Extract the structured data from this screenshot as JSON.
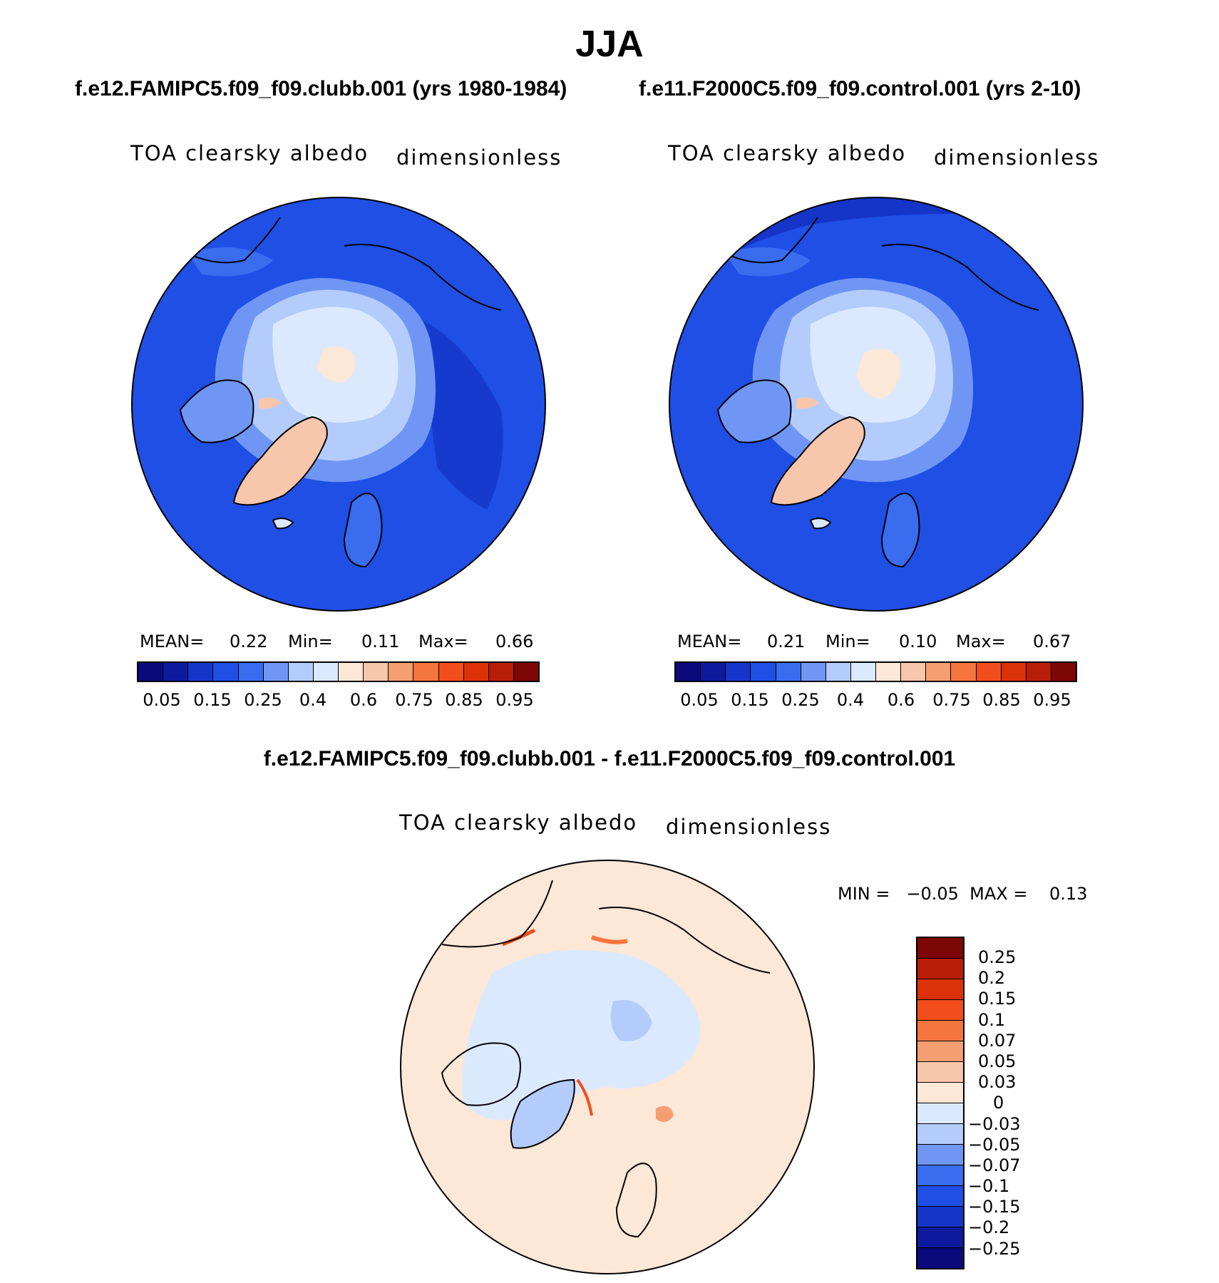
{
  "title": "JJA",
  "panels": [
    {
      "case_title": "f.e12.FAMIPC5.f09_f09.clubb.001 (yrs 1980-1984)",
      "variable": "TOA clearsky albedo",
      "units": "dimensionless",
      "stats": {
        "mean_label": "MEAN=",
        "mean": "0.22",
        "min_label": "Min=",
        "min": "0.11",
        "max_label": "Max=",
        "max": "0.66"
      }
    },
    {
      "case_title": "f.e11.F2000C5.f09_f09.control.001 (yrs 2-10)",
      "variable": "TOA clearsky albedo",
      "units": "dimensionless",
      "stats": {
        "mean_label": "MEAN=",
        "mean": "0.21",
        "min_label": "Min=",
        "min": "0.10",
        "max_label": "Max=",
        "max": "0.67"
      }
    }
  ],
  "diff_panel": {
    "case_title": "f.e12.FAMIPC5.f09_f09.clubb.001 - f.e11.F2000C5.f09_f09.control.001",
    "variable": "TOA clearsky albedo",
    "units": "dimensionless",
    "minmax_text": "MIN =   −0.05  MAX =    0.13"
  },
  "colorbar_abs": {
    "colors": [
      "#0a0a7c",
      "#0e1a9e",
      "#1535c8",
      "#1f4fe5",
      "#3a6cf0",
      "#7096f5",
      "#b3ccfb",
      "#dbe9fe",
      "#fde7d6",
      "#f8c6ab",
      "#f59e72",
      "#f5753e",
      "#f24d1c",
      "#dd3108",
      "#b81e06",
      "#7d0606"
    ],
    "labels": [
      "0.05",
      "0.15",
      "0.25",
      "0.4",
      "0.6",
      "0.75",
      "0.85",
      "0.95"
    ]
  },
  "colorbar_diff": {
    "colors": [
      "#7d0606",
      "#b81e06",
      "#dd3108",
      "#f24d1c",
      "#f5753e",
      "#f59e72",
      "#f8c6ab",
      "#fde7d6",
      "#dbe9fe",
      "#b3ccfb",
      "#7096f5",
      "#3a6cf0",
      "#1f4fe5",
      "#1535c8",
      "#0e1a9e",
      "#0a0a7c"
    ],
    "labels": [
      "0.25",
      "0.2",
      "0.15",
      "0.1",
      "0.07",
      "0.05",
      "0.03",
      "0",
      "−0.03",
      "−0.05",
      "−0.07",
      "−0.1",
      "−0.15",
      "−0.2",
      "−0.25"
    ]
  },
  "field_colors": {
    "ocean": "#1f4fe5",
    "ocean_dark": "#1535c8",
    "ice_light": "#dbe9fe",
    "ice_mid": "#b3ccfb",
    "ice_blue": "#7096f5",
    "land_high": "#f8c6ab",
    "land_peach": "#fde7d6",
    "diff_bg": "#fde7d6",
    "diff_neg_light": "#dbe9fe",
    "diff_neg_mid": "#b3ccfb",
    "diff_pos": "#f59e72",
    "diff_pos_strong": "#f24d1c"
  }
}
